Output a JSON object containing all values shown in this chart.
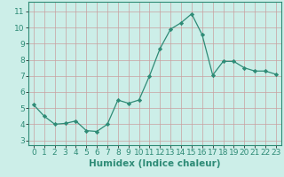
{
  "x": [
    0,
    1,
    2,
    3,
    4,
    5,
    6,
    7,
    8,
    9,
    10,
    11,
    12,
    13,
    14,
    15,
    16,
    17,
    18,
    19,
    20,
    21,
    22,
    23
  ],
  "y": [
    5.2,
    4.5,
    4.0,
    4.05,
    4.2,
    3.6,
    3.55,
    4.0,
    5.5,
    5.3,
    5.5,
    7.0,
    8.7,
    9.9,
    10.3,
    10.85,
    9.55,
    7.05,
    7.9,
    7.9,
    7.5,
    7.3,
    7.3,
    7.1
  ],
  "xlabel": "Humidex (Indice chaleur)",
  "xlim": [
    -0.5,
    23.5
  ],
  "ylim": [
    2.7,
    11.6
  ],
  "yticks": [
    3,
    4,
    5,
    6,
    7,
    8,
    9,
    10,
    11
  ],
  "xticks": [
    0,
    1,
    2,
    3,
    4,
    5,
    6,
    7,
    8,
    9,
    10,
    11,
    12,
    13,
    14,
    15,
    16,
    17,
    18,
    19,
    20,
    21,
    22,
    23
  ],
  "line_color": "#2e8b76",
  "marker": "D",
  "marker_size": 2.2,
  "bg_color": "#cceee8",
  "grid_color": "#c8a0a0",
  "spine_color": "#2e8b76",
  "xlabel_fontsize": 7.5,
  "tick_fontsize": 6.5
}
